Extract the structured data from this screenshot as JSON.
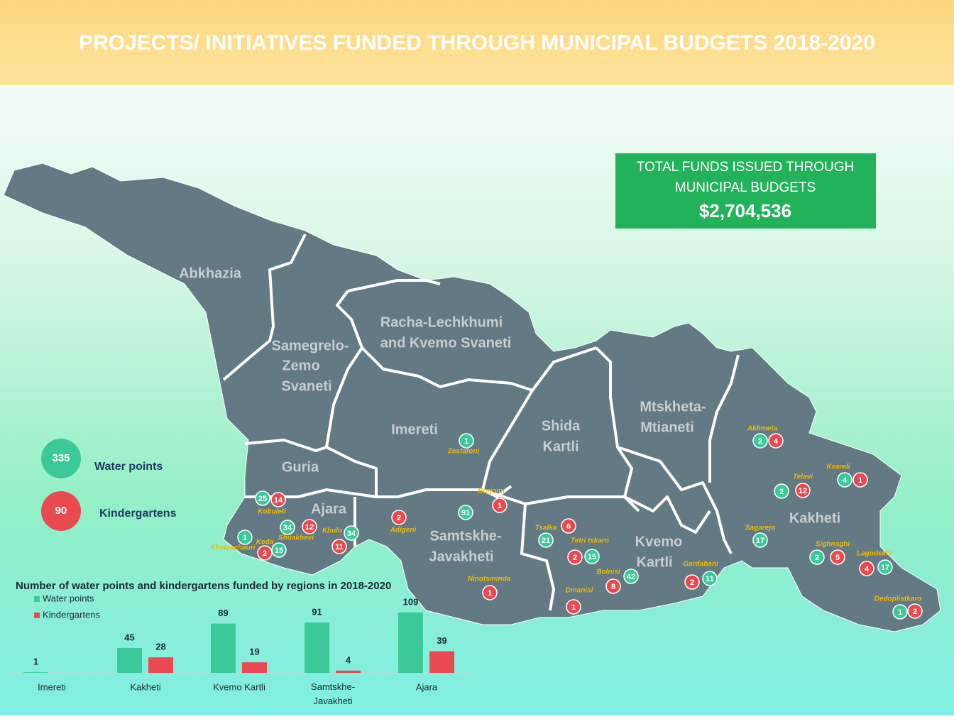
{
  "header": {
    "title": "PROJECTS/ INITIATIVES FUNDED THROUGH MUNICIPAL BUDGETS 2018-2020"
  },
  "total_funds": {
    "label_lines": [
      "TOTAL FUNDS ISSUED THROUGH",
      "MUNICIPAL BUDGETS"
    ],
    "amount": "$2,704,536"
  },
  "legend": [
    {
      "value": 335,
      "label": "Water points",
      "color": "#3cc99a"
    },
    {
      "value": 90,
      "label": "Kindergartens",
      "color": "#e84a4f"
    }
  ],
  "regions": [
    {
      "lines": [
        "Abkhazia"
      ]
    },
    {
      "lines": [
        "Samegrelo-",
        "Zemo",
        "Svaneti"
      ]
    },
    {
      "lines": [
        "Racha-Lechkhumi",
        "and Kvemo Svaneti"
      ]
    },
    {
      "lines": [
        "Imereti"
      ]
    },
    {
      "lines": [
        "Shida",
        "Kartli"
      ]
    },
    {
      "lines": [
        "Mtskheta-",
        "Mtianeti"
      ]
    },
    {
      "lines": [
        "Guria"
      ]
    },
    {
      "lines": [
        "Ajara"
      ]
    },
    {
      "lines": [
        "Samtskhe-",
        "Javakheti"
      ]
    },
    {
      "lines": [
        "Kvemo",
        "Kartli"
      ]
    },
    {
      "lines": [
        "Kakheti"
      ]
    }
  ],
  "municipalities": [
    {
      "name": "Zestafoni",
      "water_points": 1
    },
    {
      "name": "Akhmeta",
      "water_points": 2,
      "kindergartens": 4
    },
    {
      "name": "Telavi",
      "water_points": 2,
      "kindergartens": 12
    },
    {
      "name": "Kvareli",
      "water_points": 4,
      "kindergartens": 1
    },
    {
      "name": "Sagarejo",
      "water_points": 17
    },
    {
      "name": "Sighnaghi",
      "water_points": 2,
      "kindergartens": 5
    },
    {
      "name": "Lagodekhi",
      "water_points": 17,
      "kindergartens": 4
    },
    {
      "name": "Dedoplistkaro",
      "water_points": 1,
      "kindergartens": 2
    },
    {
      "name": "Gardabani",
      "water_points": 11,
      "kindergartens": 2
    },
    {
      "name": "Bolnisi",
      "water_points": 42,
      "kindergartens": 8
    },
    {
      "name": "Tetri tskaro",
      "water_points": 15,
      "kindergartens": 2
    },
    {
      "name": "Tsalka",
      "water_points": 21,
      "kindergartens": 6
    },
    {
      "name": "Dmanisi",
      "kindergartens": 1
    },
    {
      "name": "Borjomi",
      "kindergartens": 1
    },
    {
      "name": "Adigeni",
      "kindergartens": 2
    },
    {
      "water_points": 91
    },
    {
      "name": "Ninotsminda",
      "kindergartens": 1
    },
    {
      "name": "Kobuleti",
      "water_points": 25,
      "kindergartens": 14
    },
    {
      "name": "Shuakhevi",
      "water_points": 34,
      "kindergartens": 12
    },
    {
      "name": "Khulo",
      "water_points": 34,
      "kindergartens": 11
    },
    {
      "name": "Keda",
      "water_points": 15,
      "kindergartens": 2
    },
    {
      "name": "Khelvachauri",
      "water_points": 1
    }
  ],
  "chart_data": {
    "type": "bar",
    "title": "Number of water points and kindergartens funded by regions in 2018-2020",
    "categories": [
      "Imereti",
      "Kakheti",
      "Kvemo Kartli",
      "Samtskhe-Javakheti",
      "Ajara"
    ],
    "series": [
      {
        "name": "Water points",
        "color": "#3cc99a",
        "values": [
          1,
          45,
          89,
          91,
          109
        ]
      },
      {
        "name": "Kindergartens",
        "color": "#e84a4f",
        "values": [
          null,
          28,
          19,
          4,
          39
        ]
      }
    ]
  }
}
